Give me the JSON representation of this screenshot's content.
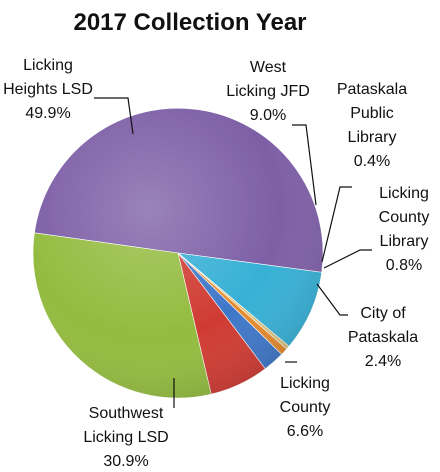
{
  "chart_data": {
    "type": "pie",
    "title": "2017 Collection Year",
    "slices": [
      {
        "label": [
          "Licking",
          "Heights LSD"
        ],
        "value": 49.9,
        "value_text": "49.9%",
        "color": "#7d5fa6"
      },
      {
        "label": [
          "West",
          "Licking JFD"
        ],
        "value": 9.0,
        "value_text": "9.0%",
        "color": "#37b0d6"
      },
      {
        "label": [
          "Pataskala",
          "Public",
          "Library"
        ],
        "value": 0.4,
        "value_text": "0.4%",
        "color": "#d9c07a"
      },
      {
        "label": [
          "Licking",
          "County",
          "Library"
        ],
        "value": 0.8,
        "value_text": "0.8%",
        "color": "#e48a2c"
      },
      {
        "label": [
          "City of",
          "Pataskala"
        ],
        "value": 2.4,
        "value_text": "2.4%",
        "color": "#3f77c8"
      },
      {
        "label": [
          "Licking",
          "County"
        ],
        "value": 6.6,
        "value_text": "6.6%",
        "color": "#cf3b33"
      },
      {
        "label": [
          "Southwest",
          "Licking LSD"
        ],
        "value": 30.9,
        "value_text": "30.9%",
        "color": "#93bb3f"
      }
    ],
    "start_angle_deg": 188,
    "direction": "clockwise"
  }
}
